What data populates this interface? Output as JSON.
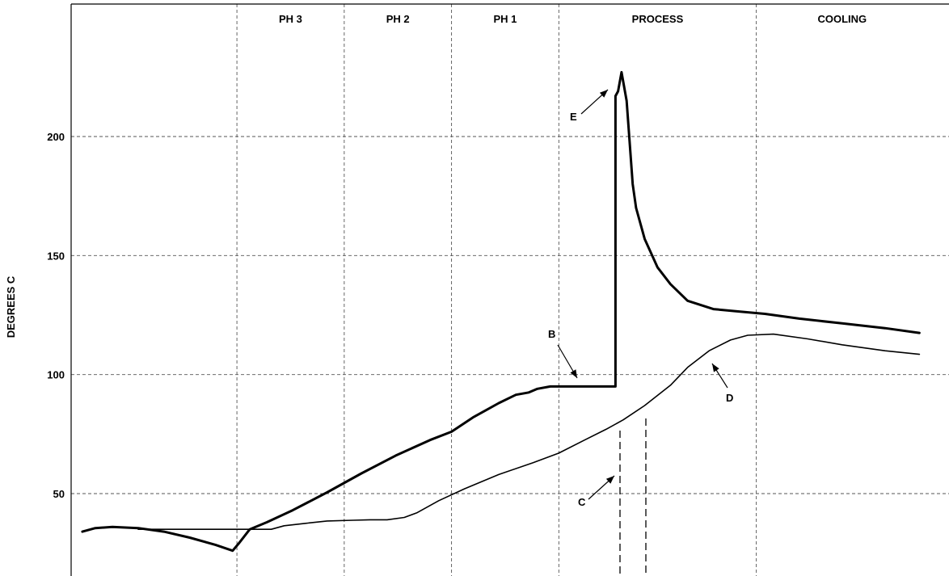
{
  "chart_data": {
    "type": "line",
    "ylabel": "DEGREES C",
    "ylim": [
      15,
      240
    ],
    "yticks": [
      50,
      100,
      150,
      200
    ],
    "xlim": [
      0,
      100
    ],
    "grid": true,
    "zones": [
      {
        "label": "",
        "start": 0,
        "end": 19.5
      },
      {
        "label": "PH 3",
        "start": 19.5,
        "end": 32
      },
      {
        "label": "PH 2",
        "start": 32,
        "end": 44.5
      },
      {
        "label": "PH 1",
        "start": 44.5,
        "end": 57
      },
      {
        "label": "PROCESS",
        "start": 57,
        "end": 80
      },
      {
        "label": "COOLING",
        "start": 80,
        "end": 100
      }
    ],
    "series": [
      {
        "style": "thick",
        "x": [
          1.5,
          3,
          5,
          8,
          11,
          14,
          17,
          19,
          19.7,
          21,
          23,
          26,
          30,
          34,
          38,
          42,
          44.5,
          47,
          50,
          52,
          53.5,
          54.5,
          56,
          58,
          60,
          63,
          63.6,
          63.6,
          63.9,
          64.3,
          64.9,
          65.6,
          66,
          67,
          68.5,
          70,
          72,
          75,
          78,
          81,
          85,
          90,
          95,
          99
        ],
        "y": [
          34,
          35.5,
          36,
          35.5,
          34,
          31.5,
          28.5,
          26,
          29,
          35,
          38,
          43,
          50.5,
          58.5,
          66,
          72.5,
          76,
          82,
          88,
          91.5,
          92.5,
          94,
          95,
          95,
          95,
          95,
          95,
          217,
          219,
          227,
          215,
          180,
          170,
          157,
          145,
          138,
          131,
          127.5,
          126.5,
          125.5,
          123.5,
          121.5,
          119.5,
          117.5
        ]
      },
      {
        "style": "thin",
        "x": [
          8,
          12,
          16,
          20,
          23.5,
          25,
          27.5,
          30,
          33,
          35,
          37,
          39,
          40.5,
          43,
          46,
          50,
          54,
          57,
          60,
          62.5,
          64.5,
          67,
          70,
          72,
          74.5,
          77,
          79,
          82,
          86,
          90,
          95,
          99
        ],
        "y": [
          35,
          35,
          35,
          35,
          35,
          36.5,
          37.5,
          38.5,
          38.8,
          39,
          39,
          40,
          42,
          47,
          52,
          58,
          63,
          67,
          72.5,
          77,
          81,
          87,
          95.5,
          103,
          110,
          114.5,
          116.5,
          117,
          115,
          112.5,
          110,
          108.5
        ]
      }
    ],
    "annotations": [
      {
        "label": "B"
      },
      {
        "label": "C"
      },
      {
        "label": "D"
      },
      {
        "label": "E"
      }
    ]
  }
}
